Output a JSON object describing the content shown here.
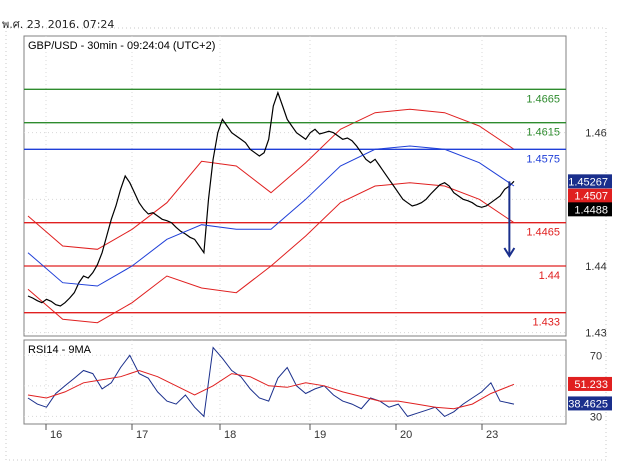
{
  "header": {
    "date_time": "พ.ศ. 23, 2016, 07:24"
  },
  "chart_data": [
    {
      "type": "line",
      "title": "GBP/USD - 30min - 09:24:04 (UTC+2)",
      "y_ticks": [
        "1.46",
        "1.44",
        "1.43"
      ],
      "x_ticks": [
        "16",
        "17",
        "18",
        "19",
        "20",
        "23"
      ],
      "ylim": [
        1.4295,
        1.4745
      ],
      "levels": [
        {
          "value": 1.4665,
          "label": "1.4665",
          "color": "#2e8b2e"
        },
        {
          "value": 1.4615,
          "label": "1.4615",
          "color": "#2e8b2e"
        },
        {
          "value": 1.4575,
          "label": "1.4575",
          "color": "#1f3fd8"
        },
        {
          "value": 1.4465,
          "label": "1.4465",
          "color": "#e02020"
        },
        {
          "value": 1.44,
          "label": "1.44",
          "color": "#e02020"
        },
        {
          "value": 1.433,
          "label": "1.433",
          "color": "#e02020"
        }
      ],
      "price_tags": [
        {
          "label": "1.45267",
          "value": 1.4527,
          "color": "#1a2f8c"
        },
        {
          "label": "1.4507",
          "value": 1.4507,
          "color": "#e02020"
        },
        {
          "label": "1.4488",
          "value": 1.4488,
          "color": "#000000"
        }
      ],
      "series": [
        {
          "color": "#000000",
          "x": [
            0,
            2,
            4,
            6,
            8,
            10,
            12,
            14,
            16,
            18,
            20,
            22,
            24,
            26,
            28,
            30,
            32,
            34,
            36,
            38,
            40,
            42,
            44,
            46,
            48,
            50,
            52,
            54,
            56,
            58,
            60,
            62,
            64,
            66,
            68,
            70,
            72,
            74,
            76,
            78,
            80,
            82,
            84,
            86,
            88,
            90,
            92,
            94,
            96,
            98,
            100,
            102,
            104,
            106,
            108,
            110,
            112,
            114,
            116,
            118,
            120,
            122,
            124,
            126,
            128,
            130,
            132,
            134,
            136,
            138,
            140,
            142,
            144,
            146,
            148,
            150,
            152,
            154,
            156,
            158,
            160,
            162,
            164,
            166,
            168,
            170,
            172,
            174,
            176,
            178,
            180,
            182,
            184,
            186,
            188,
            190,
            192,
            194,
            196,
            198,
            200,
            202,
            204,
            206,
            208,
            210
          ],
          "y": [
            1.4355,
            1.4352,
            1.4348,
            1.4345,
            1.435,
            1.4347,
            1.4342,
            1.434,
            1.4345,
            1.4352,
            1.436,
            1.4375,
            1.4385,
            1.4382,
            1.439,
            1.4402,
            1.442,
            1.4445,
            1.447,
            1.449,
            1.4515,
            1.4535,
            1.4525,
            1.451,
            1.4495,
            1.4485,
            1.4478,
            1.448,
            1.4475,
            1.447,
            1.4468,
            1.4465,
            1.4458,
            1.4452,
            1.4448,
            1.4443,
            1.444,
            1.443,
            1.442,
            1.45,
            1.456,
            1.46,
            1.462,
            1.461,
            1.46,
            1.4595,
            1.459,
            1.4585,
            1.4575,
            1.457,
            1.4565,
            1.457,
            1.459,
            1.464,
            1.466,
            1.464,
            1.462,
            1.461,
            1.46,
            1.4595,
            1.459,
            1.46,
            1.4605,
            1.4598,
            1.46,
            1.4602,
            1.46,
            1.4595,
            1.459,
            1.4592,
            1.4588,
            1.458,
            1.457,
            1.456,
            1.4555,
            1.456,
            1.455,
            1.454,
            1.453,
            1.452,
            1.451,
            1.45,
            1.4495,
            1.449,
            1.4492,
            1.4495,
            1.45,
            1.4508,
            1.4515,
            1.4522,
            1.4525,
            1.452,
            1.451,
            1.4505,
            1.45,
            1.4498,
            1.4495,
            1.449,
            1.4488,
            1.449,
            1.4495,
            1.45,
            1.4505,
            1.4515,
            1.452,
            1.4527
          ]
        },
        {
          "color": "#1f3fd8",
          "x": [
            0,
            15,
            30,
            45,
            60,
            75,
            90,
            105,
            120,
            135,
            150,
            165,
            180,
            195,
            210
          ],
          "y": [
            1.442,
            1.4375,
            1.437,
            1.44,
            1.444,
            1.4462,
            1.4455,
            1.4455,
            1.45,
            1.455,
            1.4575,
            1.458,
            1.4575,
            1.4555,
            1.452
          ]
        }
      ]
    },
    {
      "type": "line",
      "title": "RSI14 - 9MA",
      "y_ticks": [
        "70",
        "30"
      ],
      "ylim": [
        25,
        80
      ],
      "price_tags": [
        {
          "label": "51.233",
          "value": 51.233,
          "color": "#e02020"
        },
        {
          "label": "38.4625",
          "value": 38.4625,
          "color": "#1a2f8c"
        }
      ],
      "series": [
        {
          "color": "#1a2f8c",
          "x": [
            0,
            4,
            8,
            12,
            16,
            20,
            24,
            28,
            32,
            36,
            40,
            44,
            48,
            52,
            56,
            60,
            64,
            68,
            72,
            76,
            80,
            84,
            88,
            92,
            96,
            100,
            104,
            108,
            112,
            116,
            120,
            124,
            128,
            132,
            136,
            140,
            144,
            148,
            152,
            156,
            160,
            164,
            168,
            172,
            176,
            180,
            184,
            188,
            192,
            196,
            200,
            204,
            210
          ],
          "y": [
            42,
            38,
            36,
            45,
            50,
            55,
            60,
            58,
            48,
            52,
            62,
            70,
            58,
            55,
            46,
            40,
            38,
            44,
            36,
            30,
            75,
            68,
            60,
            56,
            48,
            42,
            40,
            55,
            62,
            50,
            45,
            48,
            50,
            44,
            40,
            38,
            35,
            42,
            40,
            36,
            38,
            30,
            32,
            34,
            36,
            30,
            33,
            38,
            42,
            46,
            52,
            40,
            38
          ]
        },
        {
          "color": "#e02020",
          "x": [
            0,
            8,
            16,
            24,
            32,
            40,
            48,
            56,
            64,
            72,
            80,
            88,
            96,
            104,
            112,
            120,
            128,
            136,
            144,
            152,
            160,
            168,
            176,
            184,
            192,
            200,
            210
          ],
          "y": [
            44,
            42,
            46,
            52,
            54,
            56,
            60,
            56,
            50,
            44,
            50,
            58,
            56,
            50,
            49,
            52,
            50,
            46,
            43,
            40,
            40,
            38,
            36,
            35,
            38,
            45,
            51
          ]
        }
      ]
    }
  ]
}
